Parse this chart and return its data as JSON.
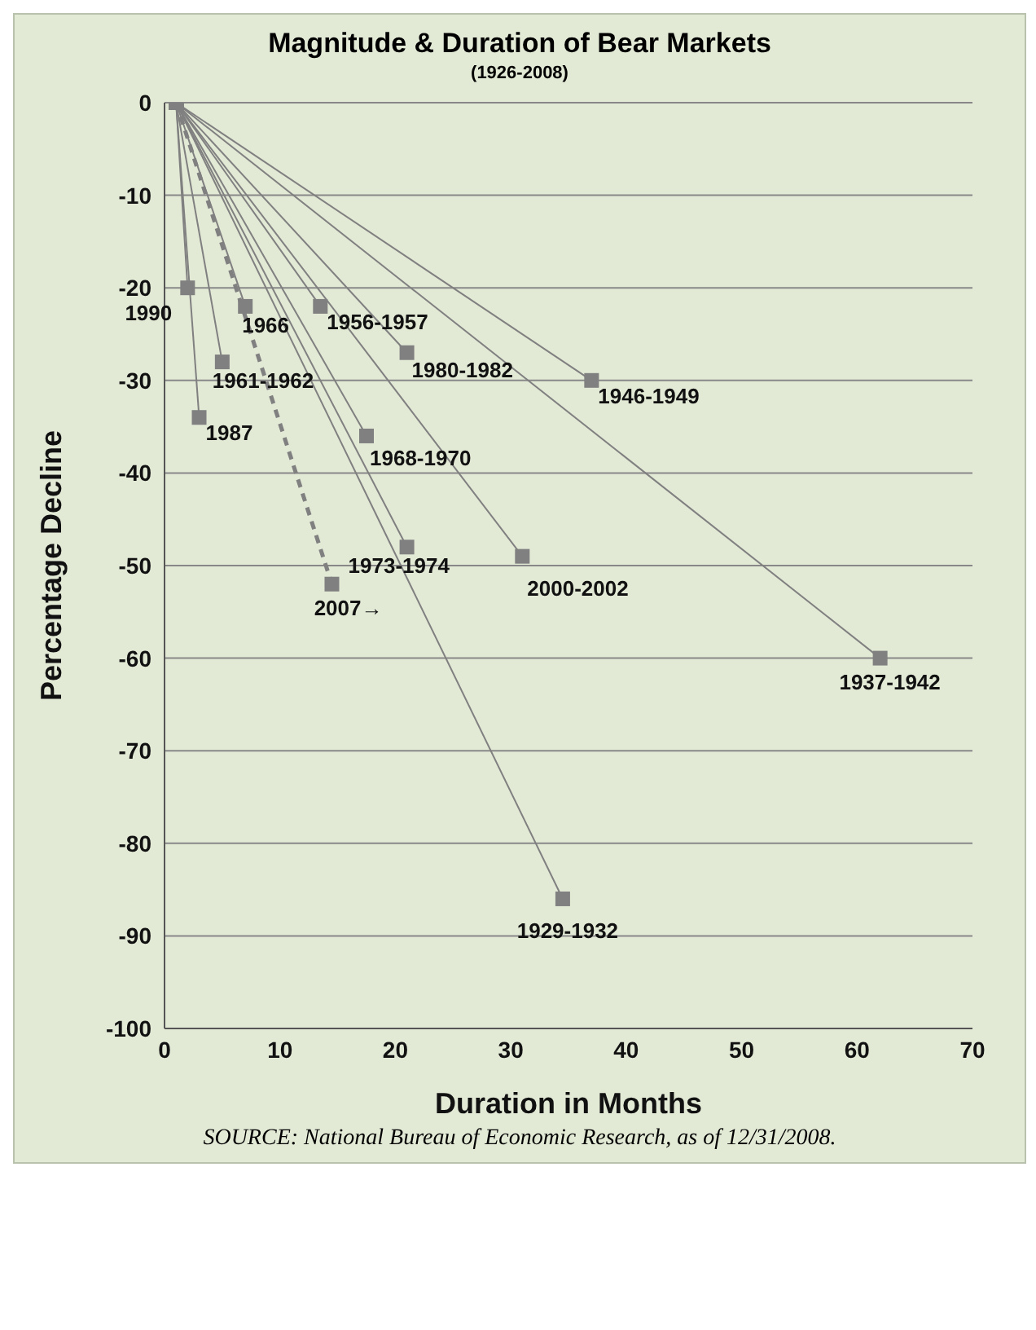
{
  "chart_data": {
    "type": "line",
    "title": "Magnitude & Duration of Bear Markets",
    "subtitle": "(1926-2008)",
    "xlabel": "Duration in Months",
    "ylabel": "Percentage Decline",
    "xlim": [
      0,
      70
    ],
    "xticks": [
      0,
      10,
      20,
      30,
      40,
      50,
      60,
      70
    ],
    "ylim": [
      -100,
      0
    ],
    "yticks": [
      -100,
      -90,
      -80,
      -70,
      -60,
      -50,
      -40,
      -30,
      -20,
      -10,
      0
    ],
    "grid": "y",
    "marker": "square",
    "series": [
      {
        "name": "1990",
        "color": "#808080",
        "x": [
          1,
          2
        ],
        "values": [
          0,
          -20
        ]
      },
      {
        "name": "1987",
        "color": "#808080",
        "x": [
          1,
          3
        ],
        "values": [
          0,
          -34
        ]
      },
      {
        "name": "1966",
        "color": "#808080",
        "x": [
          1,
          7
        ],
        "values": [
          0,
          -22
        ]
      },
      {
        "name": "1961-1962",
        "color": "#808080",
        "x": [
          1,
          5
        ],
        "values": [
          0,
          -28
        ]
      },
      {
        "name": "1956-1957",
        "color": "#808080",
        "x": [
          1,
          13.5
        ],
        "values": [
          0,
          -22
        ]
      },
      {
        "name": "1980-1982",
        "color": "#808080",
        "x": [
          1,
          21
        ],
        "values": [
          0,
          -27
        ]
      },
      {
        "name": "1968-1970",
        "color": "#808080",
        "x": [
          1,
          17.5
        ],
        "values": [
          0,
          -36
        ]
      },
      {
        "name": "1946-1949",
        "color": "#808080",
        "x": [
          1,
          37
        ],
        "values": [
          0,
          -30
        ]
      },
      {
        "name": "1973-1974",
        "color": "#808080",
        "x": [
          1,
          21
        ],
        "values": [
          0,
          -48
        ]
      },
      {
        "name": "2000-2002",
        "color": "#808080",
        "x": [
          1,
          31
        ],
        "values": [
          0,
          -49
        ]
      },
      {
        "name": "2007→",
        "color": "#808080",
        "x": [
          1,
          14.5
        ],
        "values": [
          0,
          -52
        ],
        "line_style": "dashed"
      },
      {
        "name": "1937-1942",
        "color": "#808080",
        "x": [
          1,
          62
        ],
        "values": [
          0,
          -60
        ]
      },
      {
        "name": "1929-1932",
        "color": "#808080",
        "x": [
          1,
          34.5
        ],
        "values": [
          0,
          -86
        ]
      }
    ],
    "annotations": [
      "SOURCE: National Bureau of Economic Research, as of 12/31/2008."
    ]
  }
}
